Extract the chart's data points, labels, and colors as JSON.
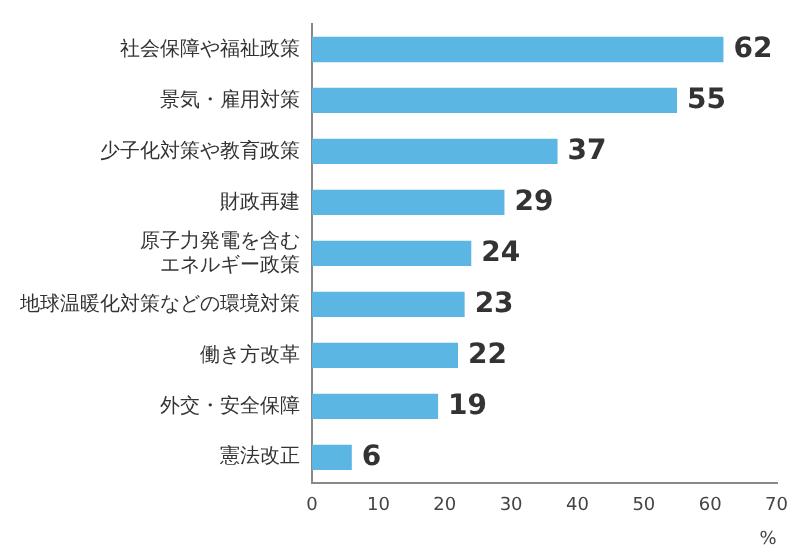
{
  "chart_data": {
    "type": "bar",
    "orientation": "horizontal",
    "categories": [
      "社会保障や福祉政策",
      "景気・雇用対策",
      "少子化対策や教育政策",
      "財政再建",
      "原子力発電を含むエネルギー政策",
      "地球温暖化対策などの環境対策",
      "働き方改革",
      "外交・安全保障",
      "憲法改正"
    ],
    "values": [
      62,
      55,
      37,
      29,
      24,
      23,
      22,
      19,
      6
    ],
    "color": "#5cb6e4",
    "xlim": [
      0,
      70
    ],
    "xticks": [
      0,
      10,
      20,
      30,
      40,
      50,
      60,
      70
    ],
    "xlabel": "%",
    "grid": false,
    "legend": false,
    "data_labels": true
  }
}
